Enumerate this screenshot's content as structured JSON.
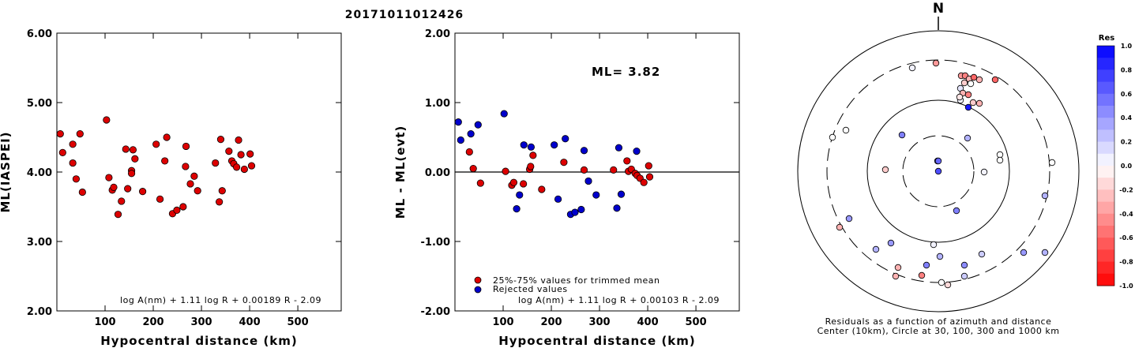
{
  "title": "20171011012426",
  "chart_data": [
    {
      "type": "scatter",
      "xlabel": "Hypocentral distance (km)",
      "ylabel": "ML(IASPEI)",
      "xlim": [
        0,
        590
      ],
      "ylim": [
        2.0,
        6.0
      ],
      "x_ticks": [
        "100",
        "200",
        "300",
        "400",
        "500"
      ],
      "y_ticks": [
        "2.00",
        "3.00",
        "4.00",
        "5.00",
        "6.00"
      ],
      "annotation": "log A(nm) + 1.11 log R + 0.00189 R - 2.09",
      "points": [
        [
          7,
          4.55
        ],
        [
          12,
          4.28
        ],
        [
          33,
          4.4
        ],
        [
          33,
          4.13
        ],
        [
          40,
          3.9
        ],
        [
          48,
          4.55
        ],
        [
          53,
          3.71
        ],
        [
          103,
          4.75
        ],
        [
          108,
          3.92
        ],
        [
          115,
          3.74
        ],
        [
          118,
          3.78
        ],
        [
          127,
          3.39
        ],
        [
          134,
          3.58
        ],
        [
          143,
          4.33
        ],
        [
          147,
          3.76
        ],
        [
          155,
          4.02
        ],
        [
          155,
          3.98
        ],
        [
          158,
          4.32
        ],
        [
          162,
          4.19
        ],
        [
          178,
          3.72
        ],
        [
          206,
          4.4
        ],
        [
          214,
          3.61
        ],
        [
          224,
          4.16
        ],
        [
          228,
          4.5
        ],
        [
          240,
          3.4
        ],
        [
          249,
          3.45
        ],
        [
          262,
          3.5
        ],
        [
          268,
          4.37
        ],
        [
          267,
          4.08
        ],
        [
          277,
          3.83
        ],
        [
          285,
          3.94
        ],
        [
          292,
          3.73
        ],
        [
          329,
          4.13
        ],
        [
          337,
          3.57
        ],
        [
          340,
          4.47
        ],
        [
          343,
          3.73
        ],
        [
          357,
          4.3
        ],
        [
          363,
          4.16
        ],
        [
          367,
          4.12
        ],
        [
          373,
          4.07
        ],
        [
          377,
          4.46
        ],
        [
          382,
          4.25
        ],
        [
          389,
          4.04
        ],
        [
          401,
          4.26
        ],
        [
          404,
          4.09
        ]
      ]
    },
    {
      "type": "scatter",
      "xlabel": "Hypocentral distance (km)",
      "ylabel": "ML - ML(evt)",
      "xlim": [
        0,
        590
      ],
      "ylim": [
        -2.0,
        2.0
      ],
      "x_ticks": [
        "100",
        "200",
        "300",
        "400",
        "500"
      ],
      "y_ticks": [
        "-2.00",
        "-1.00",
        "0.00",
        "1.00",
        "2.00"
      ],
      "ml_label": "ML= 3.82",
      "annotation": "log A(nm) + 1.11 log R + 0.00103 R - 2.09",
      "legend": [
        "25%-75% values for trimmed mean",
        "Rejected values"
      ],
      "series": [
        {
          "name": "25%-75% values for trimmed mean",
          "color": "#dd0000",
          "points": [
            [
              30,
              0.29
            ],
            [
              38,
              0.05
            ],
            [
              53,
              -0.16
            ],
            [
              105,
              0.01
            ],
            [
              118,
              -0.19
            ],
            [
              122,
              -0.15
            ],
            [
              142,
              -0.17
            ],
            [
              155,
              0.04
            ],
            [
              157,
              0.08
            ],
            [
              162,
              0.24
            ],
            [
              180,
              -0.25
            ],
            [
              226,
              0.14
            ],
            [
              268,
              0.03
            ],
            [
              329,
              0.03
            ],
            [
              357,
              0.16
            ],
            [
              360,
              0.01
            ],
            [
              366,
              0.04
            ],
            [
              374,
              -0.02
            ],
            [
              378,
              -0.05
            ],
            [
              384,
              -0.09
            ],
            [
              392,
              -0.15
            ],
            [
              402,
              0.09
            ],
            [
              404,
              -0.07
            ]
          ]
        },
        {
          "name": "Rejected values",
          "color": "#0000cc",
          "points": [
            [
              7,
              0.72
            ],
            [
              12,
              0.46
            ],
            [
              33,
              0.55
            ],
            [
              48,
              0.68
            ],
            [
              102,
              0.84
            ],
            [
              128,
              -0.53
            ],
            [
              134,
              -0.33
            ],
            [
              143,
              0.39
            ],
            [
              158,
              0.36
            ],
            [
              206,
              0.39
            ],
            [
              214,
              -0.39
            ],
            [
              229,
              0.48
            ],
            [
              240,
              -0.61
            ],
            [
              249,
              -0.58
            ],
            [
              262,
              -0.54
            ],
            [
              268,
              0.31
            ],
            [
              277,
              -0.13
            ],
            [
              293,
              -0.33
            ],
            [
              336,
              -0.52
            ],
            [
              340,
              0.35
            ],
            [
              345,
              -0.32
            ],
            [
              377,
              0.3
            ]
          ]
        }
      ]
    },
    {
      "type": "scatter",
      "title": "N",
      "caption_lines": [
        "Residuals as a function of azimuth and distance",
        "Center (10km), Circle at 30, 100, 300 and 1000 km"
      ],
      "colorbar_title": "Res",
      "colorbar_ticks": [
        "1.0",
        "0.8",
        "0.6",
        "0.4",
        "0.2",
        "0.0",
        "-0.2",
        "-0.4",
        "-0.6",
        "-0.8",
        "-1.0"
      ],
      "points_residual": [
        [
          1217,
          96,
          -0.4
        ],
        [
          1222,
          96,
          -0.5
        ],
        [
          1227,
          100,
          -0.3
        ],
        [
          1233,
          98,
          -0.6
        ],
        [
          1240,
          101,
          -0.3
        ],
        [
          1221,
          105,
          -0.2
        ],
        [
          1229,
          106,
          0.0
        ],
        [
          1216,
          112,
          0.1
        ],
        [
          1219,
          118,
          -0.3
        ],
        [
          1226,
          120,
          -0.5
        ],
        [
          1216,
          127,
          0.05
        ],
        [
          1232,
          130,
          -0.2
        ],
        [
          1240,
          131,
          -0.3
        ],
        [
          1226,
          136,
          0.9
        ],
        [
          1215,
          123,
          -0.1
        ],
        [
          1260,
          101,
          -0.6
        ],
        [
          1155,
          86,
          0.05
        ],
        [
          1185,
          80,
          -0.4
        ],
        [
          1071,
          165,
          0.0
        ],
        [
          1054,
          174,
          0.0
        ],
        [
          1142,
          171,
          0.5
        ],
        [
          1225,
          175,
          0.3
        ],
        [
          1266,
          196,
          0.0
        ],
        [
          1266,
          203,
          0.0
        ],
        [
          1332,
          206,
          0.0
        ],
        [
          1187,
          204,
          0.6
        ],
        [
          1188,
          217,
          0.7
        ],
        [
          1121,
          215,
          -0.2
        ],
        [
          1246,
          218,
          0.05
        ],
        [
          1323,
          248,
          0.3
        ],
        [
          1211,
          267,
          0.5
        ],
        [
          1075,
          277,
          0.4
        ],
        [
          1063,
          288,
          -0.3
        ],
        [
          1128,
          308,
          0.4
        ],
        [
          1109,
          316,
          0.3
        ],
        [
          1182,
          310,
          0.05
        ],
        [
          1190,
          325,
          0.3
        ],
        [
          1221,
          336,
          0.45
        ],
        [
          1243,
          322,
          0.2
        ],
        [
          1296,
          320,
          0.4
        ],
        [
          1323,
          320,
          0.3
        ],
        [
          1137,
          339,
          -0.3
        ],
        [
          1134,
          350,
          -0.3
        ],
        [
          1167,
          349,
          -0.5
        ],
        [
          1173,
          336,
          0.5
        ],
        [
          1221,
          350,
          0.2
        ],
        [
          1192,
          358,
          0.0
        ],
        [
          1200,
          361,
          -0.15
        ]
      ]
    }
  ]
}
